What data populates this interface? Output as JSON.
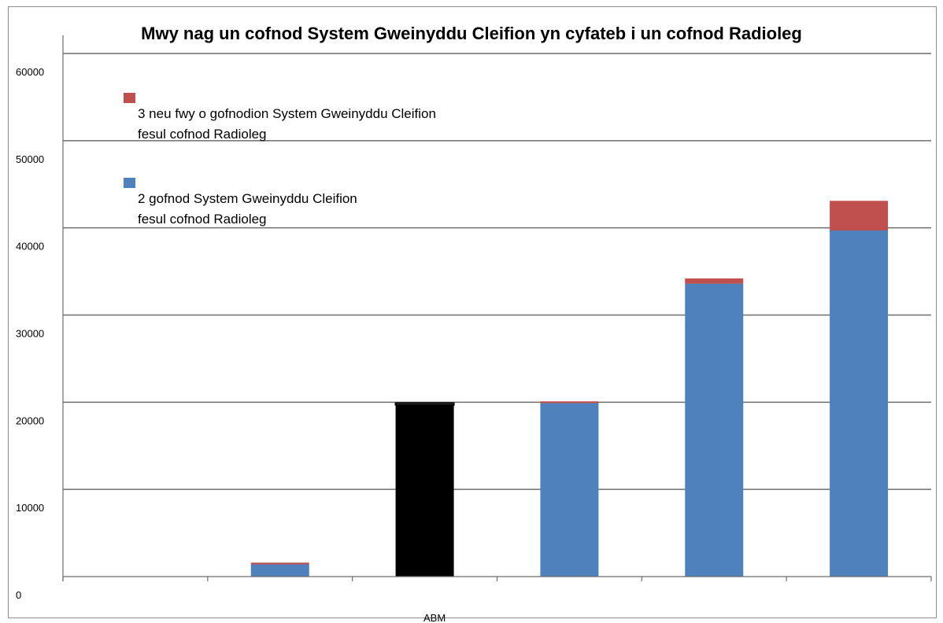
{
  "chart_data": {
    "type": "bar",
    "stacked": true,
    "title": "Mwy nag un cofnod System Gweinyddu Cleifion yn cyfateb i un cofnod Radioleg",
    "categories": [
      "",
      "",
      "ABM",
      "",
      "",
      ""
    ],
    "category_tick_labels": [
      "",
      "",
      "",
      "",
      "",
      ""
    ],
    "x_caption": "ABM",
    "ylim": [
      0,
      60000
    ],
    "yticks": [
      0,
      10000,
      20000,
      30000,
      40000,
      50000,
      60000
    ],
    "ytick_labels": [
      "0",
      "10000",
      "20000",
      "30000",
      "40000",
      "50000",
      "60000"
    ],
    "grid": true,
    "legend_position": "top-left inside",
    "series": [
      {
        "name": "2 gofnod System Gweinyddu Cleifion fesul cofnod Radioleg",
        "name_lines": [
          "2 gofnod System Gweinyddu Cleifion",
          "fesul cofnod Radioleg"
        ],
        "color": "#4f81bd",
        "values": [
          0,
          1400,
          19700,
          19900,
          33600,
          39700
        ]
      },
      {
        "name": "3 neu fwy o gofnodion System Gweinyddu Cleifion fesul cofnod Radioleg",
        "name_lines": [
          "3 neu fwy o gofnodion System Gweinyddu Cleifion",
          "fesul cofnod Radioleg"
        ],
        "color": "#c0504d",
        "values": [
          0,
          200,
          200,
          200,
          600,
          3400
        ]
      }
    ],
    "highlight_color": "#000000",
    "highlight_index": 2
  }
}
